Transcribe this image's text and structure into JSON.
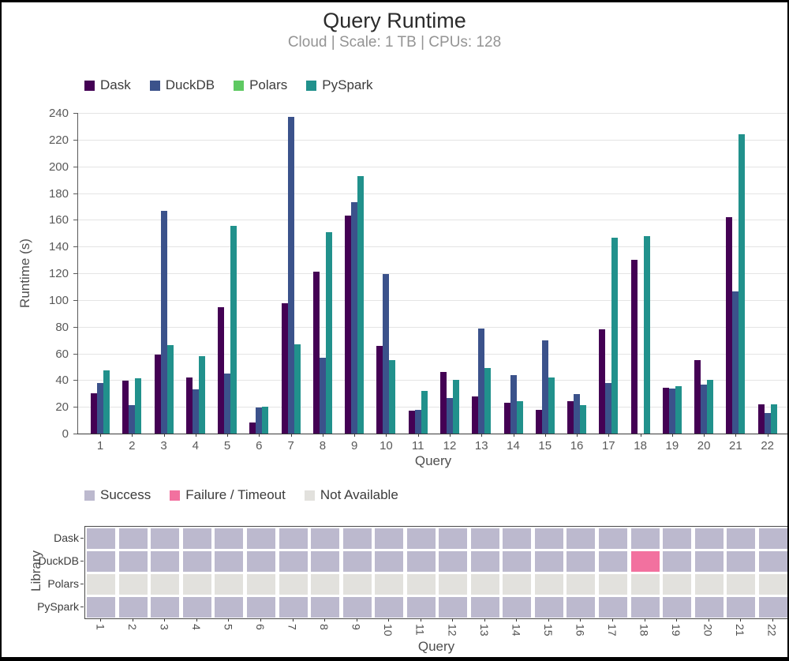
{
  "header": {
    "title": "Query Runtime",
    "subtitle": "Cloud | Scale: 1 TB | CPUs: 128"
  },
  "colors": {
    "dask": "#440154",
    "duckdb": "#3b528b",
    "polars": "#5ec962",
    "pyspark": "#21918c",
    "success": "#bcb9ce",
    "failure": "#f2719f",
    "not_available": "#e2e1dd"
  },
  "chart_data": [
    {
      "type": "bar",
      "title": "Query Runtime",
      "subtitle": "Cloud | Scale: 1 TB | CPUs: 128",
      "xlabel": "Query",
      "ylabel": "Runtime (s)",
      "ylim": [
        0,
        240
      ],
      "ytick_step": 20,
      "grid": true,
      "legend_position": "top-left",
      "categories": [
        "1",
        "2",
        "3",
        "4",
        "5",
        "6",
        "7",
        "8",
        "9",
        "10",
        "11",
        "12",
        "13",
        "14",
        "15",
        "16",
        "17",
        "18",
        "19",
        "20",
        "21",
        "22"
      ],
      "series": [
        {
          "name": "Dask",
          "color_key": "dask",
          "values": [
            30,
            39.5,
            59,
            42,
            94.5,
            8.5,
            97.5,
            121,
            163,
            65.5,
            17,
            46,
            28,
            23,
            17.5,
            24.5,
            78,
            130,
            34,
            55,
            162,
            22
          ]
        },
        {
          "name": "DuckDB",
          "color_key": "duckdb",
          "values": [
            38,
            21,
            167,
            33,
            45,
            19.5,
            237,
            57,
            173.5,
            119.5,
            18,
            26.5,
            78.5,
            44,
            70,
            29.5,
            38,
            null,
            33.5,
            36.5,
            106.5,
            15.5
          ]
        },
        {
          "name": "Polars",
          "color_key": "polars",
          "values": [
            null,
            null,
            null,
            null,
            null,
            null,
            null,
            null,
            null,
            null,
            null,
            null,
            null,
            null,
            null,
            null,
            null,
            null,
            null,
            null,
            null,
            null
          ]
        },
        {
          "name": "PySpark",
          "color_key": "pyspark",
          "values": [
            47.5,
            41.5,
            66,
            58,
            155.5,
            20,
            67,
            150.5,
            192.5,
            55,
            32,
            40,
            49,
            24.5,
            42,
            21.5,
            146.5,
            147.5,
            35.5,
            40,
            224,
            22
          ]
        }
      ]
    },
    {
      "type": "heatmap",
      "xlabel": "Query",
      "ylabel": "Library",
      "legend": [
        {
          "label": "Success",
          "color_key": "success"
        },
        {
          "label": "Failure / Timeout",
          "color_key": "failure"
        },
        {
          "label": "Not Available",
          "color_key": "not_available"
        }
      ],
      "rows": [
        "Dask",
        "DuckDB",
        "Polars",
        "PySpark"
      ],
      "columns": [
        "1",
        "2",
        "3",
        "4",
        "5",
        "6",
        "7",
        "8",
        "9",
        "10",
        "11",
        "12",
        "13",
        "14",
        "15",
        "16",
        "17",
        "18",
        "19",
        "20",
        "21",
        "22"
      ],
      "cells": [
        [
          "success",
          "success",
          "success",
          "success",
          "success",
          "success",
          "success",
          "success",
          "success",
          "success",
          "success",
          "success",
          "success",
          "success",
          "success",
          "success",
          "success",
          "success",
          "success",
          "success",
          "success",
          "success"
        ],
        [
          "success",
          "success",
          "success",
          "success",
          "success",
          "success",
          "success",
          "success",
          "success",
          "success",
          "success",
          "success",
          "success",
          "success",
          "success",
          "success",
          "success",
          "failure",
          "success",
          "success",
          "success",
          "success"
        ],
        [
          "not_available",
          "not_available",
          "not_available",
          "not_available",
          "not_available",
          "not_available",
          "not_available",
          "not_available",
          "not_available",
          "not_available",
          "not_available",
          "not_available",
          "not_available",
          "not_available",
          "not_available",
          "not_available",
          "not_available",
          "not_available",
          "not_available",
          "not_available",
          "not_available",
          "not_available"
        ],
        [
          "success",
          "success",
          "success",
          "success",
          "success",
          "success",
          "success",
          "success",
          "success",
          "success",
          "success",
          "success",
          "success",
          "success",
          "success",
          "success",
          "success",
          "success",
          "success",
          "success",
          "success",
          "success"
        ]
      ]
    }
  ]
}
